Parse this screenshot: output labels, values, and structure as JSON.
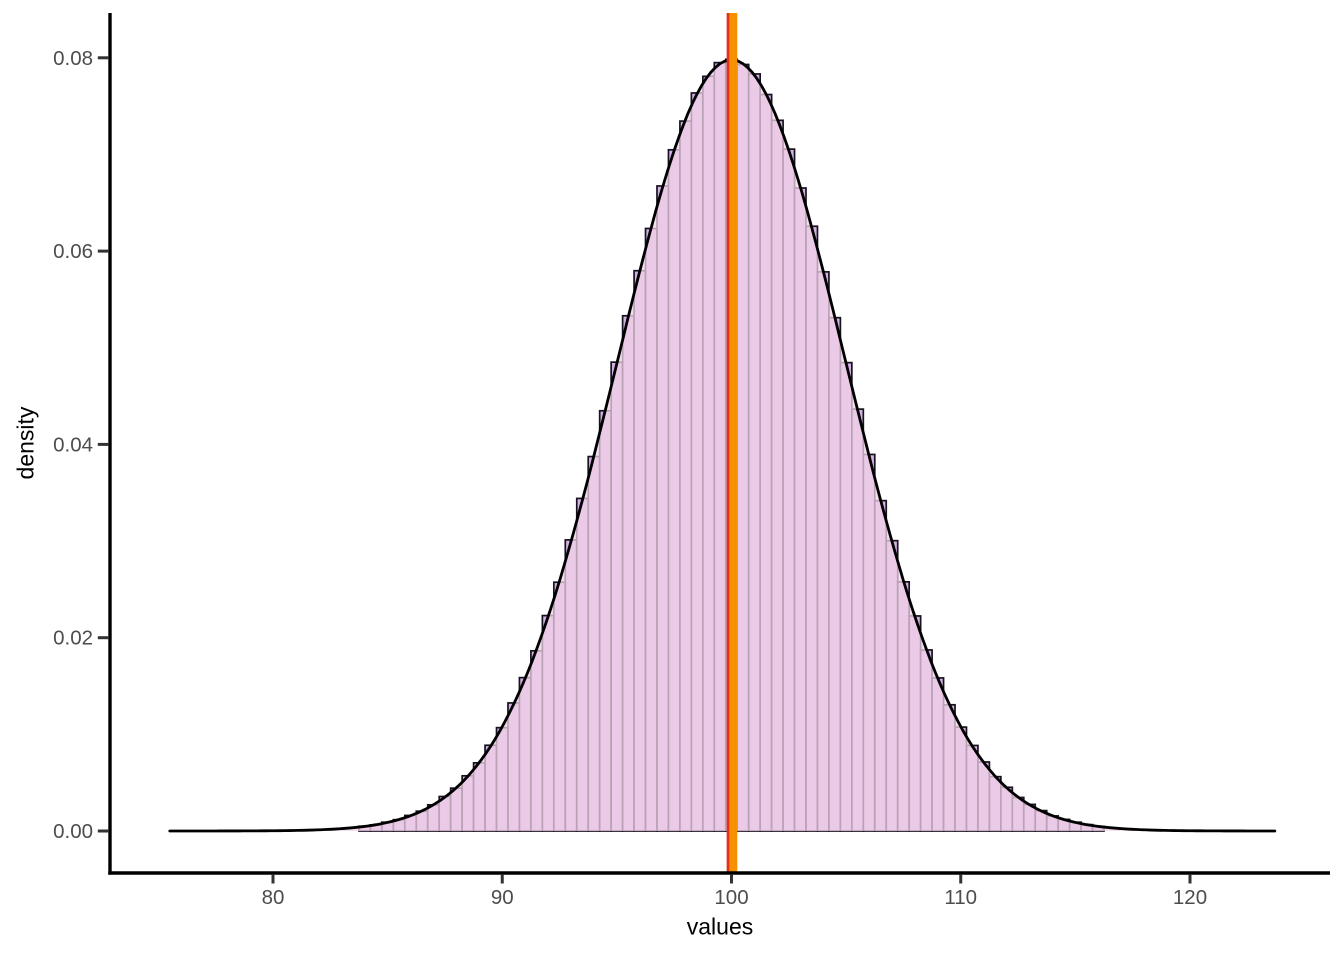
{
  "chart_data": {
    "type": "histogram",
    "subtype": "histogram_with_density_overlay",
    "title": "",
    "xlabel": "values",
    "ylabel": "density",
    "grid": false,
    "legend_position": "none",
    "background": "#ffffff",
    "xlim": [
      72.9,
      126.2
    ],
    "ylim": [
      -0.0044,
      0.0845
    ],
    "x_ticks": [
      {
        "value": 80,
        "label": "80"
      },
      {
        "value": 90,
        "label": "90"
      },
      {
        "value": 100,
        "label": "100"
      },
      {
        "value": 110,
        "label": "110"
      },
      {
        "value": 120,
        "label": "120"
      }
    ],
    "y_ticks": [
      {
        "value": 0.0,
        "label": "0.00"
      },
      {
        "value": 0.02,
        "label": "0.02"
      },
      {
        "value": 0.04,
        "label": "0.04"
      },
      {
        "value": 0.06,
        "label": "0.06"
      },
      {
        "value": 0.08,
        "label": "0.08"
      }
    ],
    "bin_width": 0.5,
    "bin_centers": [
      84.0,
      84.5,
      85.0,
      85.5,
      86.0,
      86.5,
      87.0,
      87.5,
      88.0,
      88.5,
      89.0,
      89.5,
      90.0,
      90.5,
      91.0,
      91.5,
      92.0,
      92.5,
      93.0,
      93.5,
      94.0,
      94.5,
      95.0,
      95.5,
      96.0,
      96.5,
      97.0,
      97.5,
      98.0,
      98.5,
      99.0,
      99.5,
      100.0,
      100.5,
      101.0,
      101.5,
      102.0,
      102.5,
      103.0,
      103.5,
      104.0,
      104.5,
      105.0,
      105.5,
      106.0,
      106.5,
      107.0,
      107.5,
      108.0,
      108.5,
      109.0,
      109.5,
      110.0,
      110.5,
      111.0,
      111.5,
      112.0,
      112.5,
      113.0,
      113.5,
      114.0,
      114.5,
      115.0,
      115.5,
      116.0
    ],
    "bin_heights": [
      0.00049,
      0.00063,
      0.00091,
      0.00117,
      0.00161,
      0.00205,
      0.00271,
      0.00357,
      0.00443,
      0.00571,
      0.00705,
      0.00887,
      0.01069,
      0.01325,
      0.01587,
      0.01864,
      0.02229,
      0.02574,
      0.03012,
      0.03441,
      0.03874,
      0.04348,
      0.04851,
      0.05331,
      0.05797,
      0.06234,
      0.06674,
      0.07048,
      0.07345,
      0.07636,
      0.07808,
      0.0795,
      0.07985,
      0.07931,
      0.07833,
      0.0762,
      0.07353,
      0.07055,
      0.06653,
      0.06257,
      0.05785,
      0.05311,
      0.04846,
      0.04365,
      0.03896,
      0.03418,
      0.03004,
      0.02578,
      0.02225,
      0.01873,
      0.01584,
      0.01306,
      0.01075,
      0.00885,
      0.00714,
      0.00562,
      0.00452,
      0.00347,
      0.00275,
      0.00211,
      0.00156,
      0.0012,
      0.00091,
      0.00066,
      0.00047
    ],
    "density_curve": {
      "distribution": "normal",
      "mean": 100,
      "sd": 5,
      "peak_density": 0.0798,
      "x_from": 75.5,
      "x_to": 123.7
    },
    "vlines": [
      {
        "x": 99.95,
        "color": "#e23019"
      },
      {
        "x": 100.08,
        "color": "#f79100"
      }
    ],
    "colors": {
      "bar_fill": "#d5b0e4",
      "bar_stroke": "#17121f",
      "density_fill": "#f2d3e8",
      "density_fill_opacity": 0.75,
      "curve_stroke": "#000000",
      "axis_line": "#000000",
      "tick_mark": "#333333",
      "tick_label": "#4d4d4d",
      "axis_title": "#000000"
    }
  }
}
